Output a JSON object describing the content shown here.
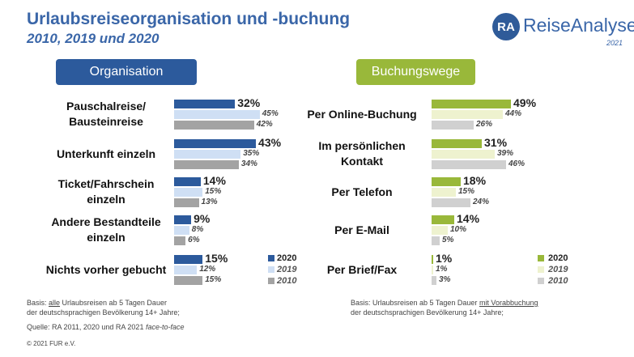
{
  "title": "Urlaubsreiseorganisation und -buchung",
  "subtitle": "2010, 2019 und 2020",
  "logo": {
    "mark": "RA",
    "name": "ReiseAnalyse",
    "year": "2021"
  },
  "colors": {
    "organisation": [
      "#2c5a9c",
      "#cfdff4",
      "#a3a3a3"
    ],
    "buchungswege": [
      "#99b83a",
      "#eef2cf",
      "#d0d0d0"
    ]
  },
  "chart_data": [
    {
      "type": "bar",
      "orientation": "horizontal",
      "title": "Organisation",
      "categories": [
        "Pauschalreise/ Bausteinreise",
        "Unterkunft einzeln",
        "Ticket/Fahrschein einzeln",
        "Andere Bestandteile einzeln",
        "Nichts vorher gebucht"
      ],
      "category_lines": [
        [
          "Pauschalreise/",
          "Bausteinreise"
        ],
        [
          "Unterkunft einzeln"
        ],
        [
          "Ticket/Fahrschein",
          "einzeln"
        ],
        [
          "Andere Bestandteile",
          "einzeln"
        ],
        [
          "Nichts vorher gebucht"
        ]
      ],
      "unit": "%",
      "series": [
        {
          "name": "2020",
          "values": [
            32,
            43,
            14,
            9,
            15
          ]
        },
        {
          "name": "2019",
          "values": [
            45,
            35,
            15,
            8,
            12
          ]
        },
        {
          "name": "2010",
          "values": [
            42,
            34,
            13,
            6,
            15
          ]
        }
      ],
      "legend_position": "bottom-right"
    },
    {
      "type": "bar",
      "orientation": "horizontal",
      "title": "Buchungswege",
      "categories": [
        "Per Online-Buchung",
        "Im persönlichen Kontakt",
        "Per Telefon",
        "Per E-Mail",
        "Per Brief/Fax"
      ],
      "category_lines": [
        [
          "Per Online-Buchung"
        ],
        [
          "Im persönlichen",
          "Kontakt"
        ],
        [
          "Per Telefon"
        ],
        [
          "Per E-Mail"
        ],
        [
          "Per Brief/Fax"
        ]
      ],
      "unit": "%",
      "series": [
        {
          "name": "2020",
          "values": [
            49,
            31,
            18,
            14,
            1
          ]
        },
        {
          "name": "2019",
          "values": [
            44,
            39,
            15,
            10,
            1
          ]
        },
        {
          "name": "2010",
          "values": [
            26,
            46,
            24,
            5,
            3
          ]
        }
      ],
      "legend_position": "bottom-right"
    }
  ],
  "notes": {
    "left_basis_pre": "Basis: ",
    "left_basis_u": "alle",
    "left_basis_post": " Urlaubsreisen ab 5 Tagen Dauer",
    "left_basis_line2": "der deutschsprachigen Bevölkerung 14+ Jahre;",
    "quelle_pre": "Quelle: RA 2011, 2020 und RA 2021 ",
    "quelle_i": "face-to-face",
    "right_basis_pre": "Basis: Urlaubsreisen ab 5 Tagen Dauer ",
    "right_basis_u": "mit Vorabbuchung",
    "right_basis_line2": "der deutschsprachigen Bevölkerung 14+ Jahre;",
    "copyright": "© 2021 FUR e.V."
  }
}
